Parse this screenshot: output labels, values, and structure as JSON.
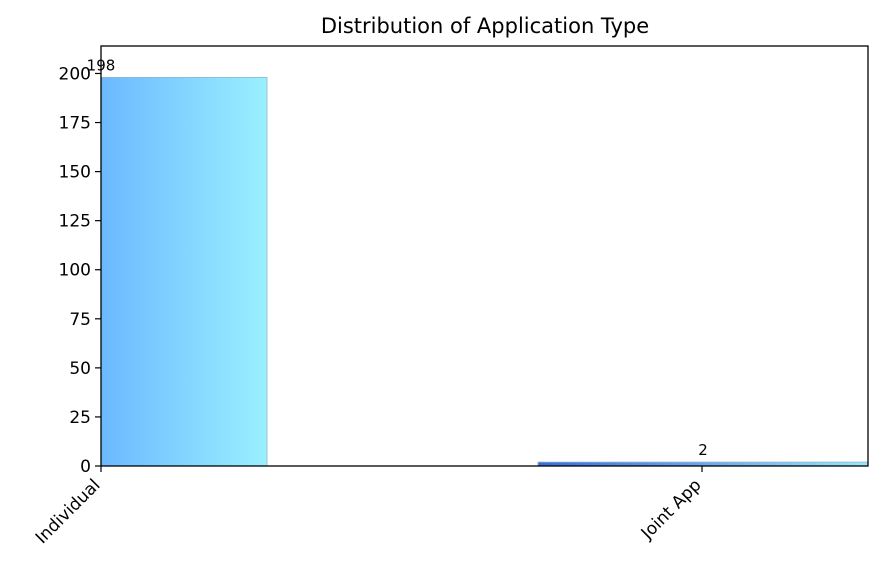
{
  "chart_data": {
    "type": "bar",
    "title": "Distribution of Application Type",
    "xlabel": "",
    "ylabel": "",
    "categories": [
      "Individual",
      "Joint App"
    ],
    "values": [
      198,
      2
    ],
    "data_labels": [
      "198",
      "2"
    ],
    "ylim": [
      0,
      214
    ],
    "yticks": [
      0,
      25,
      50,
      75,
      100,
      125,
      150,
      175,
      200
    ],
    "grid": false,
    "legend": "none",
    "colors": {
      "individual_gradient": [
        "#6cb8ff",
        "#9af0ff"
      ],
      "joint_gradient": [
        "#3b6bd8",
        "#9ae6ff"
      ],
      "bar_edge": "#8fb8cc",
      "axis": "#000000"
    }
  }
}
